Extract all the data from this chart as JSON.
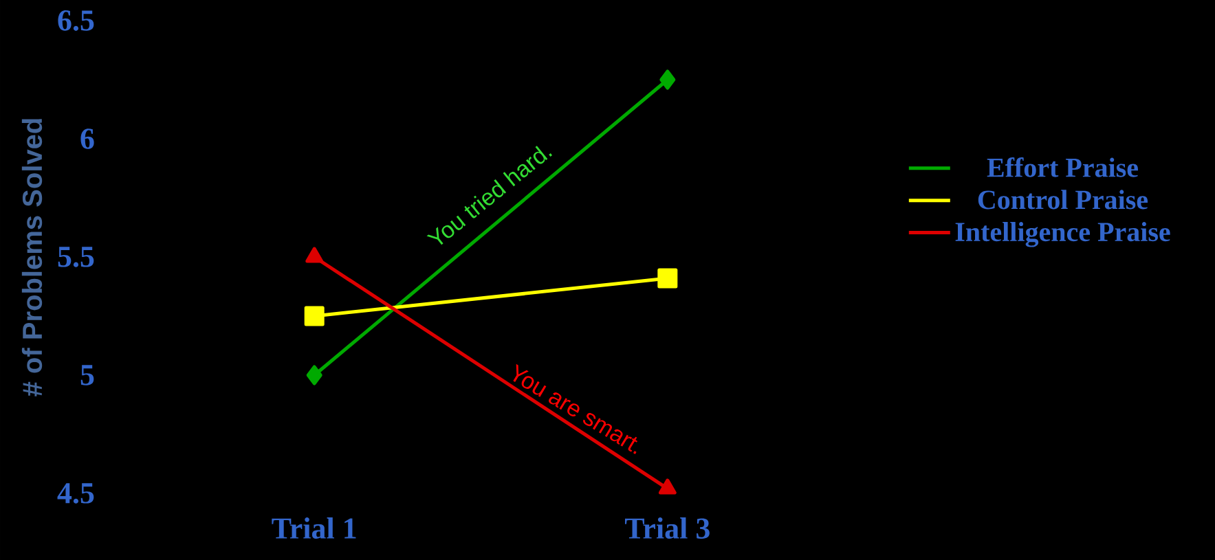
{
  "chart_data": {
    "type": "line",
    "ylabel": "# of Problems Solved",
    "categories": [
      "Trial 1",
      "Trial 3"
    ],
    "series": [
      {
        "name": "Effort Praise",
        "color": "#00aa00",
        "marker": "diamond",
        "values": [
          5.0,
          6.25
        ]
      },
      {
        "name": "Control Praise",
        "color": "#ffff00",
        "marker": "square",
        "values": [
          5.25,
          5.41
        ]
      },
      {
        "name": "Intelligence Praise",
        "color": "#dd0000",
        "marker": "triangle",
        "values": [
          5.5,
          4.52
        ]
      }
    ],
    "ylim": [
      4.5,
      6.5
    ],
    "yticks": [
      4.5,
      5,
      5.5,
      6,
      6.5
    ],
    "grid": false,
    "legend": "right",
    "annotations": [
      "You tried hard.",
      "You are smart."
    ]
  }
}
